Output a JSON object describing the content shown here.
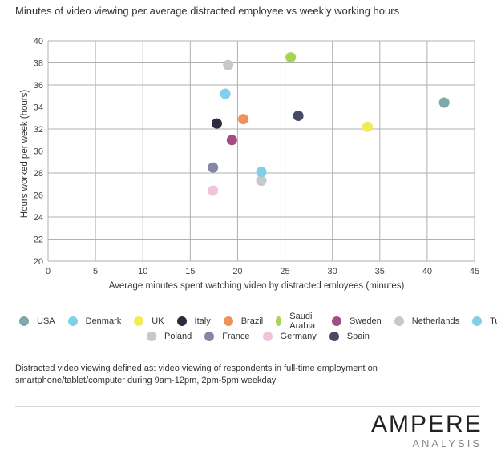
{
  "chart_data": {
    "type": "scatter",
    "title": "Minutes of video viewing per average distracted employee vs weekly working hours",
    "xlabel": "Average minutes spent watching video by distracted emloyees (minutes)",
    "ylabel": "Hours worked per week (hours)",
    "xlim": [
      0,
      45
    ],
    "ylim": [
      20,
      40
    ],
    "xticks": [
      0,
      5,
      10,
      15,
      20,
      25,
      30,
      35,
      40,
      45
    ],
    "yticks": [
      20,
      22,
      24,
      26,
      28,
      30,
      32,
      34,
      36,
      38,
      40
    ],
    "grid": true,
    "legend_position": "bottom",
    "series": [
      {
        "name": "USA",
        "color": "#7fa8ab",
        "x": 41.8,
        "y": 34.4
      },
      {
        "name": "Denmark",
        "color": "#7fd0e8",
        "x": 18.7,
        "y": 35.2
      },
      {
        "name": "UK",
        "color": "#f2ec52",
        "x": 33.7,
        "y": 32.2
      },
      {
        "name": "Italy",
        "color": "#2b2d3e",
        "x": 17.8,
        "y": 32.5
      },
      {
        "name": "Brazil",
        "color": "#ef915b",
        "x": 20.6,
        "y": 32.9
      },
      {
        "name": "Saudi Arabia",
        "color": "#a8d453",
        "x": 25.6,
        "y": 38.5
      },
      {
        "name": "Sweden",
        "color": "#a44d84",
        "x": 19.4,
        "y": 31.0
      },
      {
        "name": "Netherlands",
        "color": "#c8c8c8",
        "x": 22.5,
        "y": 27.3
      },
      {
        "name": "Turkey",
        "color": "#7fd0e8",
        "x": 22.5,
        "y": 28.1
      },
      {
        "name": "Poland",
        "color": "#c8c8c8",
        "x": 19.0,
        "y": 37.8
      },
      {
        "name": "France",
        "color": "#8587a8",
        "x": 17.4,
        "y": 28.5
      },
      {
        "name": "Germany",
        "color": "#f0c4dd",
        "x": 17.4,
        "y": 26.4
      },
      {
        "name": "Spain",
        "color": "#474a63",
        "x": 26.4,
        "y": 33.2
      }
    ]
  },
  "legend_rows": [
    [
      "USA",
      "Denmark",
      "UK",
      "Italy",
      "Brazil",
      "Saudi Arabia",
      "Sweden",
      "Netherlands",
      "Turkey"
    ],
    [
      "Poland",
      "France",
      "Germany",
      "Spain"
    ]
  ],
  "footnote": "Distracted video viewing defined as: video viewing of respondents in full-time employment on smartphone/tablet/computer during 9am-12pm, 2pm-5pm weekday",
  "logo": {
    "main": "AMPERE",
    "sub": "ANALYSIS"
  }
}
